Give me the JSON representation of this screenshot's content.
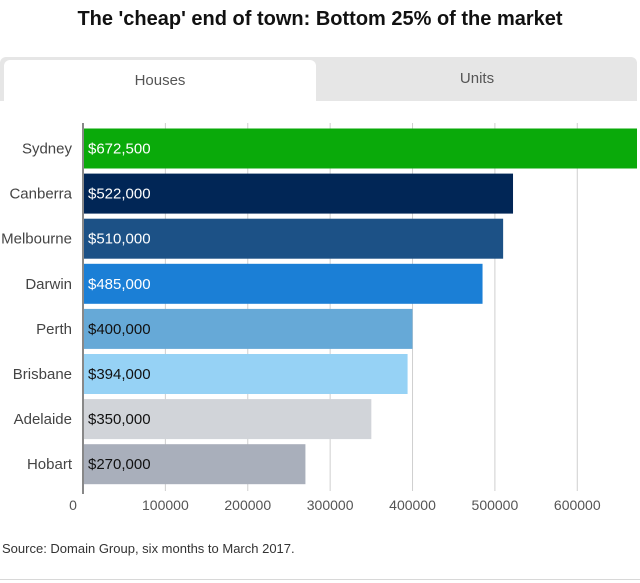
{
  "title": "The 'cheap' end of town: Bottom 25% of the market",
  "tabs": [
    {
      "label": "Houses",
      "active": true
    },
    {
      "label": "Units",
      "active": false
    }
  ],
  "source": "Source: Domain Group, six months to March 2017.",
  "chart_data": {
    "type": "bar",
    "orientation": "horizontal",
    "categories": [
      "Sydney",
      "Canberra",
      "Melbourne",
      "Darwin",
      "Perth",
      "Brisbane",
      "Adelaide",
      "Hobart"
    ],
    "values": [
      672500,
      522000,
      510000,
      485000,
      400000,
      394000,
      350000,
      270000
    ],
    "data_labels": [
      "$672,500",
      "$522,000",
      "$510,000",
      "$485,000",
      "$400,000",
      "$394,000",
      "$350,000",
      "$270,000"
    ],
    "colors": [
      "#0aaa0a",
      "#012656",
      "#1c5186",
      "#1b7fd6",
      "#66a9d7",
      "#96d2f5",
      "#d1d4d9",
      "#a9afbb"
    ],
    "label_colors": [
      "#ffffff",
      "#ffffff",
      "#ffffff",
      "#ffffff",
      "#111111",
      "#111111",
      "#111111",
      "#111111"
    ],
    "xticks": [
      0,
      100000,
      200000,
      300000,
      400000,
      500000,
      600000
    ],
    "xtick_labels": [
      "0",
      "100000",
      "200000",
      "300000",
      "400000",
      "500000",
      "600000"
    ],
    "xlim": [
      0,
      672500
    ],
    "grid": true,
    "legend": "none"
  }
}
